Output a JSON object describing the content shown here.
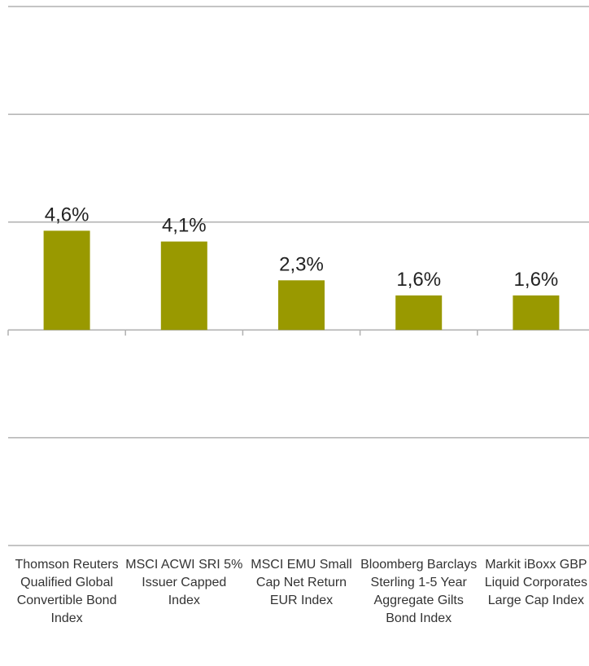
{
  "chart_data": {
    "type": "bar",
    "categories": [
      "Thomson Reuters Qualified Global Convertible Bond Index",
      "MSCI ACWI SRI 5% Issuer Capped Index",
      "MSCI EMU Small Cap Net Return EUR Index",
      "Bloomberg Barclays Sterling 1-5 Year Aggregate Gilts Bond Index",
      "Markit iBoxx GBP Liquid Corporates Large Cap Index"
    ],
    "values": [
      4.6,
      4.1,
      2.3,
      1.6,
      1.6
    ],
    "value_labels": [
      "4,6%",
      "4,1%",
      "2,3%",
      "1,6%",
      "1,6%"
    ],
    "color": "#999900",
    "ylim": [
      -10,
      15
    ],
    "yticks": [
      -10,
      -5,
      0,
      5,
      10,
      15
    ],
    "grid": true
  }
}
